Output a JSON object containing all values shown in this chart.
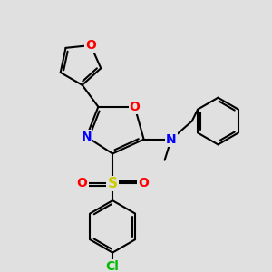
{
  "bg_color": "#e0e0e0",
  "bond_color": "#000000",
  "bond_width": 1.5,
  "atom_colors": {
    "O": "#ff0000",
    "N": "#0000ff",
    "S": "#cccc00",
    "Cl": "#00bb00",
    "C": "#000000"
  },
  "font_size_atom": 10,
  "xlim": [
    0,
    10
  ],
  "ylim": [
    0,
    10
  ]
}
